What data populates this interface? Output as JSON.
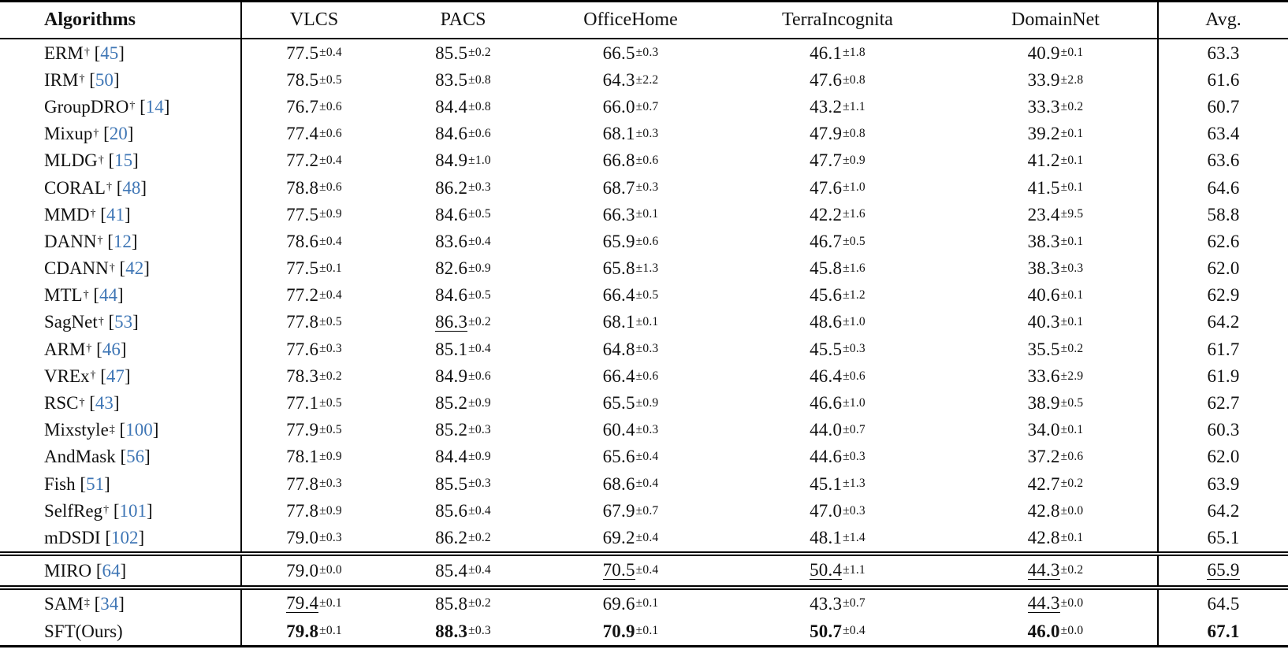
{
  "symbols": {
    "pm": "±",
    "open_bracket": "[",
    "close_bracket": "]",
    "space": " "
  },
  "colors": {
    "citation": "#3f76b5",
    "text": "#111111",
    "rule": "#000000"
  },
  "header": {
    "columns": [
      "Algorithms",
      "VLCS",
      "PACS",
      "OfficeHome",
      "TerraIncognita",
      "DomainNet",
      "Avg."
    ]
  },
  "sections": [
    {
      "rows": [
        {
          "algorithm": "ERM",
          "marker": "†",
          "ref": "45",
          "suffix": "",
          "values": [
            {
              "v": "77.5",
              "pm": "0.4"
            },
            {
              "v": "85.5",
              "pm": "0.2"
            },
            {
              "v": "66.5",
              "pm": "0.3"
            },
            {
              "v": "46.1",
              "pm": "1.8"
            },
            {
              "v": "40.9",
              "pm": "0.1"
            }
          ],
          "avg": {
            "v": "63.3"
          }
        },
        {
          "algorithm": "IRM",
          "marker": "†",
          "ref": "50",
          "suffix": "",
          "values": [
            {
              "v": "78.5",
              "pm": "0.5"
            },
            {
              "v": "83.5",
              "pm": "0.8"
            },
            {
              "v": "64.3",
              "pm": "2.2"
            },
            {
              "v": "47.6",
              "pm": "0.8"
            },
            {
              "v": "33.9",
              "pm": "2.8"
            }
          ],
          "avg": {
            "v": "61.6"
          }
        },
        {
          "algorithm": "GroupDRO",
          "marker": "†",
          "ref": "14",
          "suffix": "",
          "values": [
            {
              "v": "76.7",
              "pm": "0.6"
            },
            {
              "v": "84.4",
              "pm": "0.8"
            },
            {
              "v": "66.0",
              "pm": "0.7"
            },
            {
              "v": "43.2",
              "pm": "1.1"
            },
            {
              "v": "33.3",
              "pm": "0.2"
            }
          ],
          "avg": {
            "v": "60.7"
          }
        },
        {
          "algorithm": "Mixup",
          "marker": "†",
          "ref": "20",
          "suffix": "",
          "values": [
            {
              "v": "77.4",
              "pm": "0.6"
            },
            {
              "v": "84.6",
              "pm": "0.6"
            },
            {
              "v": "68.1",
              "pm": "0.3"
            },
            {
              "v": "47.9",
              "pm": "0.8"
            },
            {
              "v": "39.2",
              "pm": "0.1"
            }
          ],
          "avg": {
            "v": "63.4"
          }
        },
        {
          "algorithm": "MLDG",
          "marker": "†",
          "ref": "15",
          "suffix": "",
          "values": [
            {
              "v": "77.2",
              "pm": "0.4"
            },
            {
              "v": "84.9",
              "pm": "1.0"
            },
            {
              "v": "66.8",
              "pm": "0.6"
            },
            {
              "v": "47.7",
              "pm": "0.9"
            },
            {
              "v": "41.2",
              "pm": "0.1"
            }
          ],
          "avg": {
            "v": "63.6"
          }
        },
        {
          "algorithm": "CORAL",
          "marker": "†",
          "ref": "48",
          "suffix": "",
          "values": [
            {
              "v": "78.8",
              "pm": "0.6"
            },
            {
              "v": "86.2",
              "pm": "0.3"
            },
            {
              "v": "68.7",
              "pm": "0.3"
            },
            {
              "v": "47.6",
              "pm": "1.0"
            },
            {
              "v": "41.5",
              "pm": "0.1"
            }
          ],
          "avg": {
            "v": "64.6"
          }
        },
        {
          "algorithm": "MMD",
          "marker": "†",
          "ref": "41",
          "suffix": "",
          "values": [
            {
              "v": "77.5",
              "pm": "0.9"
            },
            {
              "v": "84.6",
              "pm": "0.5"
            },
            {
              "v": "66.3",
              "pm": "0.1"
            },
            {
              "v": "42.2",
              "pm": "1.6"
            },
            {
              "v": "23.4",
              "pm": "9.5"
            }
          ],
          "avg": {
            "v": "58.8"
          }
        },
        {
          "algorithm": "DANN",
          "marker": "†",
          "ref": "12",
          "suffix": "",
          "values": [
            {
              "v": "78.6",
              "pm": "0.4"
            },
            {
              "v": "83.6",
              "pm": "0.4"
            },
            {
              "v": "65.9",
              "pm": "0.6"
            },
            {
              "v": "46.7",
              "pm": "0.5"
            },
            {
              "v": "38.3",
              "pm": "0.1"
            }
          ],
          "avg": {
            "v": "62.6"
          }
        },
        {
          "algorithm": "CDANN",
          "marker": "†",
          "ref": "42",
          "suffix": "",
          "values": [
            {
              "v": "77.5",
              "pm": "0.1"
            },
            {
              "v": "82.6",
              "pm": "0.9"
            },
            {
              "v": "65.8",
              "pm": "1.3"
            },
            {
              "v": "45.8",
              "pm": "1.6"
            },
            {
              "v": "38.3",
              "pm": "0.3"
            }
          ],
          "avg": {
            "v": "62.0"
          }
        },
        {
          "algorithm": "MTL",
          "marker": "†",
          "ref": "44",
          "suffix": "",
          "values": [
            {
              "v": "77.2",
              "pm": "0.4"
            },
            {
              "v": "84.6",
              "pm": "0.5"
            },
            {
              "v": "66.4",
              "pm": "0.5"
            },
            {
              "v": "45.6",
              "pm": "1.2"
            },
            {
              "v": "40.6",
              "pm": "0.1"
            }
          ],
          "avg": {
            "v": "62.9"
          }
        },
        {
          "algorithm": "SagNet",
          "marker": "†",
          "ref": "53",
          "suffix": "",
          "values": [
            {
              "v": "77.8",
              "pm": "0.5"
            },
            {
              "v": "86.3",
              "pm": "0.2",
              "u": true
            },
            {
              "v": "68.1",
              "pm": "0.1"
            },
            {
              "v": "48.6",
              "pm": "1.0"
            },
            {
              "v": "40.3",
              "pm": "0.1"
            }
          ],
          "avg": {
            "v": "64.2"
          }
        },
        {
          "algorithm": "ARM",
          "marker": "†",
          "ref": "46",
          "suffix": "",
          "values": [
            {
              "v": "77.6",
              "pm": "0.3"
            },
            {
              "v": "85.1",
              "pm": "0.4"
            },
            {
              "v": "64.8",
              "pm": "0.3"
            },
            {
              "v": "45.5",
              "pm": "0.3"
            },
            {
              "v": "35.5",
              "pm": "0.2"
            }
          ],
          "avg": {
            "v": "61.7"
          }
        },
        {
          "algorithm": "VREx",
          "marker": "†",
          "ref": "47",
          "suffix": "",
          "values": [
            {
              "v": "78.3",
              "pm": "0.2"
            },
            {
              "v": "84.9",
              "pm": "0.6"
            },
            {
              "v": "66.4",
              "pm": "0.6"
            },
            {
              "v": "46.4",
              "pm": "0.6"
            },
            {
              "v": "33.6",
              "pm": "2.9"
            }
          ],
          "avg": {
            "v": "61.9"
          }
        },
        {
          "algorithm": "RSC",
          "marker": "†",
          "ref": "43",
          "suffix": "",
          "values": [
            {
              "v": "77.1",
              "pm": "0.5"
            },
            {
              "v": "85.2",
              "pm": "0.9"
            },
            {
              "v": "65.5",
              "pm": "0.9"
            },
            {
              "v": "46.6",
              "pm": "1.0"
            },
            {
              "v": "38.9",
              "pm": "0.5"
            }
          ],
          "avg": {
            "v": "62.7"
          }
        },
        {
          "algorithm": "Mixstyle",
          "marker": "‡",
          "ref": "100",
          "suffix": "",
          "values": [
            {
              "v": "77.9",
              "pm": "0.5"
            },
            {
              "v": "85.2",
              "pm": "0.3"
            },
            {
              "v": "60.4",
              "pm": "0.3"
            },
            {
              "v": "44.0",
              "pm": "0.7"
            },
            {
              "v": "34.0",
              "pm": "0.1"
            }
          ],
          "avg": {
            "v": "60.3"
          }
        },
        {
          "algorithm": "AndMask",
          "marker": "",
          "ref": "56",
          "suffix": "",
          "values": [
            {
              "v": "78.1",
              "pm": "0.9"
            },
            {
              "v": "84.4",
              "pm": "0.9"
            },
            {
              "v": "65.6",
              "pm": "0.4"
            },
            {
              "v": "44.6",
              "pm": "0.3"
            },
            {
              "v": "37.2",
              "pm": "0.6"
            }
          ],
          "avg": {
            "v": "62.0"
          }
        },
        {
          "algorithm": "Fish",
          "marker": "",
          "ref": "51",
          "suffix": "",
          "values": [
            {
              "v": "77.8",
              "pm": "0.3"
            },
            {
              "v": "85.5",
              "pm": "0.3"
            },
            {
              "v": "68.6",
              "pm": "0.4"
            },
            {
              "v": "45.1",
              "pm": "1.3"
            },
            {
              "v": "42.7",
              "pm": "0.2"
            }
          ],
          "avg": {
            "v": "63.9"
          }
        },
        {
          "algorithm": "SelfReg",
          "marker": "†",
          "ref": "101",
          "suffix": "",
          "values": [
            {
              "v": "77.8",
              "pm": "0.9"
            },
            {
              "v": "85.6",
              "pm": "0.4"
            },
            {
              "v": "67.9",
              "pm": "0.7"
            },
            {
              "v": "47.0",
              "pm": "0.3"
            },
            {
              "v": "42.8",
              "pm": "0.0"
            }
          ],
          "avg": {
            "v": "64.2"
          }
        },
        {
          "algorithm": "mDSDI",
          "marker": "",
          "ref": "102",
          "suffix": "",
          "values": [
            {
              "v": "79.0",
              "pm": "0.3"
            },
            {
              "v": "86.2",
              "pm": "0.2"
            },
            {
              "v": "69.2",
              "pm": "0.4"
            },
            {
              "v": "48.1",
              "pm": "1.4"
            },
            {
              "v": "42.8",
              "pm": "0.1"
            }
          ],
          "avg": {
            "v": "65.1"
          }
        }
      ]
    },
    {
      "rows": [
        {
          "algorithm": "MIRO",
          "marker": "",
          "ref": "64",
          "suffix": "",
          "values": [
            {
              "v": "79.0",
              "pm": "0.0"
            },
            {
              "v": "85.4",
              "pm": "0.4"
            },
            {
              "v": "70.5",
              "pm": "0.4",
              "u": true
            },
            {
              "v": "50.4",
              "pm": "1.1",
              "u": true
            },
            {
              "v": "44.3",
              "pm": "0.2",
              "u": true
            }
          ],
          "avg": {
            "v": "65.9",
            "u": true
          }
        }
      ]
    },
    {
      "rows": [
        {
          "algorithm": "SAM",
          "marker": "‡",
          "ref": "34",
          "suffix": "",
          "values": [
            {
              "v": "79.4",
              "pm": "0.1",
              "u": true
            },
            {
              "v": "85.8",
              "pm": "0.2"
            },
            {
              "v": "69.6",
              "pm": "0.1"
            },
            {
              "v": "43.3",
              "pm": "0.7"
            },
            {
              "v": "44.3",
              "pm": "0.0",
              "u": true
            }
          ],
          "avg": {
            "v": "64.5"
          }
        },
        {
          "algorithm": "SFT",
          "marker": "",
          "ref": "",
          "suffix": " (Ours)",
          "values": [
            {
              "v": "79.8",
              "pm": "0.1",
              "b": true
            },
            {
              "v": "88.3",
              "pm": "0.3",
              "b": true
            },
            {
              "v": "70.9",
              "pm": "0.1",
              "b": true
            },
            {
              "v": "50.7",
              "pm": "0.4",
              "b": true
            },
            {
              "v": "46.0",
              "pm": "0.0",
              "b": true
            }
          ],
          "avg": {
            "v": "67.1",
            "b": true
          }
        }
      ]
    }
  ]
}
